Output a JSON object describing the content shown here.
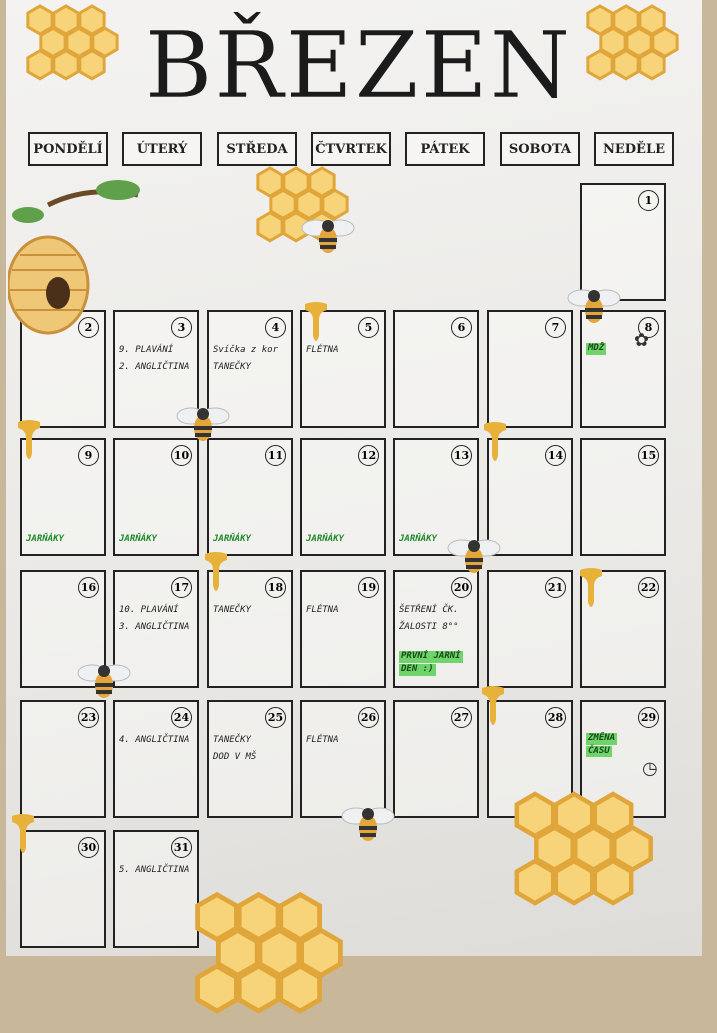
{
  "title": "BŘEZEN",
  "weekdays": [
    "PONDĚLÍ",
    "ÚTERÝ",
    "STŘEDA",
    "ČTVRTEK",
    "PÁTEK",
    "SOBOTA",
    "NEDĚLE"
  ],
  "start_weekday_index": 6,
  "days_in_month": 31,
  "events": {
    "3": {
      "lines": [
        "9. PLAVÁNÍ",
        "2. ANGLIČTINA"
      ]
    },
    "4": {
      "lines": [
        "Svíčka z kor",
        "TANEČKY"
      ]
    },
    "5": {
      "lines": [
        "FLÉTNA"
      ]
    },
    "8": {
      "highlight": [
        "MDŽ"
      ],
      "icon": "flower-icon"
    },
    "9": {
      "bottom": "JARŇÁKY"
    },
    "10": {
      "bottom": "JARŇÁKY"
    },
    "11": {
      "bottom": "JARŇÁKY"
    },
    "12": {
      "bottom": "JARŇÁKY"
    },
    "13": {
      "bottom": "JARŇÁKY"
    },
    "17": {
      "lines": [
        "10. PLAVÁNÍ",
        "3. ANGLIČTINA"
      ]
    },
    "18": {
      "lines": [
        "TANEČKY"
      ]
    },
    "19": {
      "lines": [
        "FLÉTNA"
      ]
    },
    "20": {
      "lines": [
        "ŠETŘENÍ ČK.",
        "ŽALOSTI 8°°"
      ],
      "highlight": [
        "PRVNÍ JARNÍ",
        "DEN :)"
      ]
    },
    "24": {
      "lines": [
        "4. ANGLIČTINA"
      ]
    },
    "25": {
      "lines": [
        "TANEČKY",
        "DOD V MŠ"
      ]
    },
    "26": {
      "lines": [
        "FLÉTNA"
      ]
    },
    "29": {
      "highlight": [
        "ZMĚNA",
        "ČASU"
      ],
      "icon": "clock-icon"
    },
    "31": {
      "lines": [
        "5. ANGLIČTINA"
      ]
    }
  },
  "colors": {
    "highlight": "#6fd46a",
    "honey": "#e8b23a",
    "ink": "#222222"
  }
}
